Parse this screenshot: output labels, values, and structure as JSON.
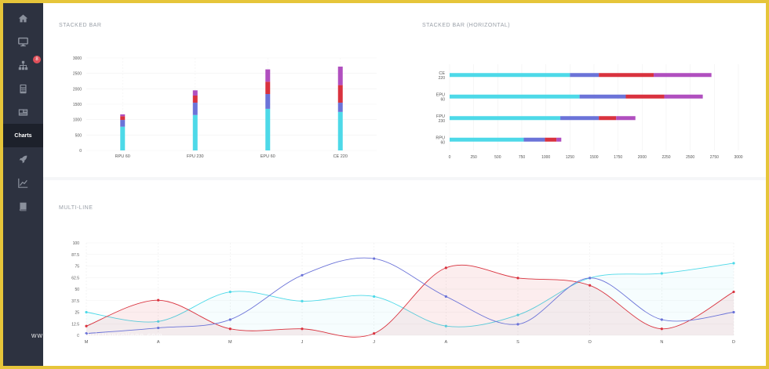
{
  "sidebar": {
    "items": [
      {
        "icon": "home-icon"
      },
      {
        "icon": "monitor-icon"
      },
      {
        "icon": "sitemap-icon",
        "badge": "8"
      },
      {
        "icon": "calculator-icon"
      },
      {
        "icon": "newspaper-icon"
      },
      {
        "icon": "",
        "label": "Charts",
        "active": true
      },
      {
        "icon": "rocket-icon"
      },
      {
        "icon": "line-chart-icon"
      },
      {
        "icon": "book-icon"
      }
    ]
  },
  "panels": {
    "stacked_title": "STACKED BAR",
    "horizontal_title": "STACKED BAR (HORIZONTAL)",
    "multiline_title": "MULTI-LINE"
  },
  "watermark": "www.heritagechristiancollege.com",
  "colors": {
    "cyan": "#4dd9e8",
    "blue": "#6b73d8",
    "red": "#d9323e",
    "purple": "#b04fbf"
  },
  "chart_data": [
    {
      "type": "bar",
      "stacked": true,
      "title": "",
      "categories": [
        "RPU 60",
        "FPU 230",
        "EPU 60",
        "CE 220"
      ],
      "series": [
        {
          "values": [
            770,
            1150,
            1350,
            1250
          ],
          "color": "#4dd9e8"
        },
        {
          "values": [
            220,
            400,
            480,
            300
          ],
          "color": "#6b73d8"
        },
        {
          "values": [
            120,
            230,
            400,
            570
          ],
          "color": "#d9323e"
        },
        {
          "values": [
            60,
            170,
            400,
            600
          ],
          "color": "#b04fbf"
        }
      ],
      "ylim": [
        0,
        3000
      ],
      "yticks": [
        "0",
        "500",
        "1000",
        "1500",
        "2000",
        "2500",
        "3000"
      ]
    },
    {
      "type": "bar",
      "orientation": "horizontal",
      "stacked": true,
      "categories": [
        {
          "line1": "CE",
          "line2": "220"
        },
        {
          "line1": "EPU",
          "line2": "60"
        },
        {
          "line1": "FPU",
          "line2": "230"
        },
        {
          "line1": "RPU",
          "line2": "60"
        }
      ],
      "series": [
        {
          "values": [
            1250,
            1350,
            1150,
            770
          ],
          "color": "#4dd9e8"
        },
        {
          "values": [
            300,
            480,
            400,
            220
          ],
          "color": "#6b73d8"
        },
        {
          "values": [
            570,
            400,
            180,
            120
          ],
          "color": "#d9323e"
        },
        {
          "values": [
            600,
            400,
            200,
            50
          ],
          "color": "#b04fbf"
        }
      ],
      "xlim": [
        0,
        3000
      ],
      "xticks": [
        "0",
        "250",
        "500",
        "750",
        "1000",
        "1250",
        "1500",
        "1750",
        "2000",
        "2250",
        "2500",
        "2750",
        "3000"
      ]
    },
    {
      "type": "line",
      "smooth": true,
      "area": true,
      "categories": [
        "M",
        "A",
        "M",
        "J",
        "J",
        "A",
        "S",
        "O",
        "N",
        "D"
      ],
      "series": [
        {
          "values": [
            25,
            15,
            47,
            37,
            42,
            10,
            22,
            62,
            67,
            78
          ],
          "color": "#4dd9e8",
          "fill": "rgba(77,217,232,0.05)"
        },
        {
          "values": [
            10,
            38,
            7,
            7,
            2,
            73,
            62,
            54,
            7,
            47
          ],
          "color": "#d9323e",
          "fill": "rgba(217,50,62,0.09)"
        },
        {
          "values": [
            2,
            8,
            17,
            65,
            83,
            42,
            12,
            62,
            17,
            25
          ],
          "color": "#6b73d8",
          "fill": "rgba(107,115,216,0.00)"
        }
      ],
      "ylim": [
        0,
        100
      ],
      "yticks": [
        "0",
        "12.5",
        "25",
        "37.5",
        "50",
        "62.5",
        "75",
        "87.5",
        "100"
      ]
    }
  ]
}
